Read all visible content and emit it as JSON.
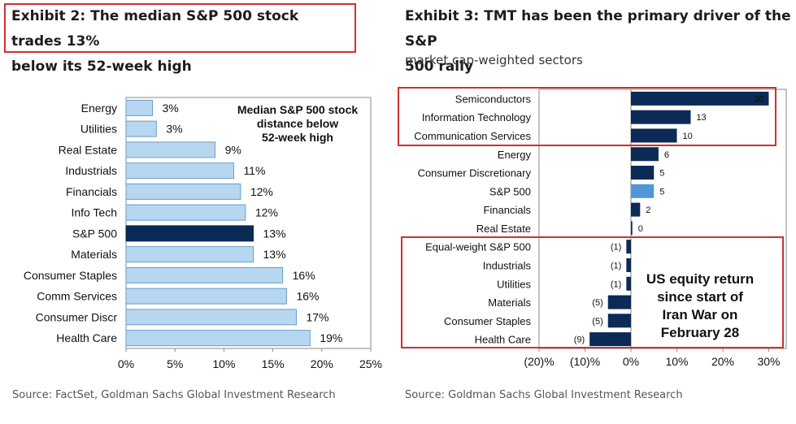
{
  "exhibit2": {
    "title_line1": "Exhibit 2: The median S&P 500 stock trades 13%",
    "title_line2": "below its 52-week high",
    "source": "Source: FactSet, Goldman Sachs Global Investment Research"
  },
  "exhibit3": {
    "title_line1": "Exhibit 3: TMT has been the primary driver of the S&P",
    "title_line2": "500 rally",
    "subtitle": "market cap-weighted sectors",
    "source": "Source: Goldman Sachs Global Investment Research"
  },
  "colors": {
    "light_bar": "#b7d7f1",
    "dark_bar": "#0b2a55",
    "mid_bar": "#4f97d8",
    "red_box": "#d03030"
  },
  "chart_data": [
    {
      "type": "bar",
      "orientation": "horizontal",
      "categories": [
        "Energy",
        "Utilities",
        "Real Estate",
        "Industrials",
        "Financials",
        "Info Tech",
        "S&P 500",
        "Materials",
        "Consumer Staples",
        "Comm Services",
        "Consumer Discr",
        "Health Care"
      ],
      "values": [
        2.7,
        3.1,
        9.1,
        11.0,
        11.7,
        12.2,
        13.0,
        13.0,
        16.0,
        16.4,
        17.4,
        18.8
      ],
      "value_labels": [
        "3%",
        "3%",
        "9%",
        "11%",
        "12%",
        "12%",
        "13%",
        "13%",
        "16%",
        "16%",
        "17%",
        "19%"
      ],
      "highlight": "S&P 500",
      "xlim": [
        0,
        25
      ],
      "x_ticks": [
        "0%",
        "5%",
        "10%",
        "15%",
        "20%",
        "25%"
      ],
      "annotation": [
        "Median S&P 500 stock",
        "distance below",
        "52-week high"
      ],
      "grid": false
    },
    {
      "type": "bar",
      "orientation": "horizontal",
      "categories": [
        "Semiconductors",
        "Information Technology",
        "Communication Services",
        "Energy",
        "Consumer Discretionary",
        "S&P 500",
        "Financials",
        "Real Estate",
        "Equal-weight S&P 500",
        "Industrials",
        "Utilities",
        "Materials",
        "Consumer Staples",
        "Health Care"
      ],
      "values": [
        30,
        13,
        10,
        6,
        5,
        5,
        2,
        0.3,
        -1,
        -1,
        -1,
        -5,
        -5,
        -9
      ],
      "value_labels": [
        "30",
        "13",
        "10",
        "6",
        "5",
        "5",
        "2",
        "0",
        "(1)",
        "(1)",
        "(1)",
        "(5)",
        "(5)",
        "(9)"
      ],
      "highlight": "S&P 500",
      "xlim": [
        -20,
        30
      ],
      "x_ticks": [
        "(20)%",
        "(10)%",
        "0%",
        "10%",
        "20%",
        "30%"
      ],
      "annotation": [
        "US equity return",
        "since start of",
        "Iran War on",
        "February 28"
      ],
      "grid": false
    }
  ]
}
